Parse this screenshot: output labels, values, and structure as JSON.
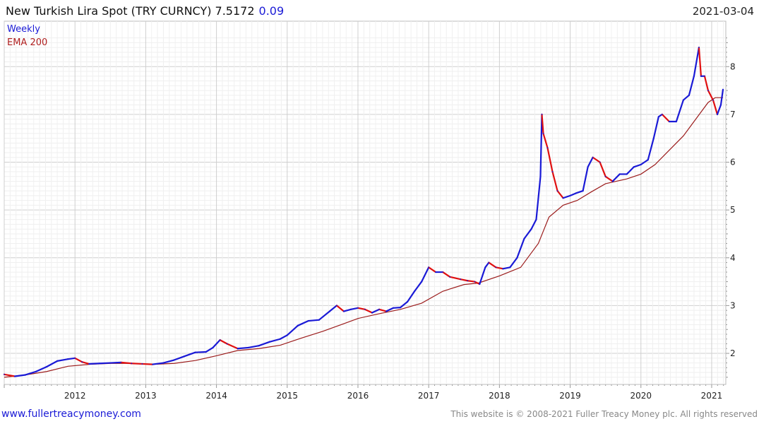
{
  "header": {
    "title": "New Turkish Lira Spot (TRY CURNCY) 7.5172",
    "change": "0.09",
    "date": "2021-03-04"
  },
  "legend": {
    "series1": "Weekly",
    "series2": "EMA 200"
  },
  "footer": {
    "left": "www.fullertreacymoney.com",
    "right": "This website is © 2008-2021 Fuller Treacy Money plc. All rights reserved"
  },
  "colors": {
    "up": "#1a1ad6",
    "down": "#e01010",
    "ema": "#9b1c1c",
    "grid": "#d8d8d8"
  },
  "chart_data": {
    "type": "line",
    "xlim": [
      2011.0,
      2021.2
    ],
    "ylim": [
      1.35,
      8.95
    ],
    "x_ticks": [
      "2012",
      "2013",
      "2014",
      "2015",
      "2016",
      "2017",
      "2018",
      "2019",
      "2020",
      "2021"
    ],
    "y_ticks": [
      "2",
      "3",
      "4",
      "5",
      "6",
      "7",
      "8"
    ],
    "series": [
      {
        "name": "Weekly",
        "points": [
          [
            2011.0,
            1.56
          ],
          [
            2011.15,
            1.52
          ],
          [
            2011.3,
            1.55
          ],
          [
            2011.45,
            1.62
          ],
          [
            2011.6,
            1.72
          ],
          [
            2011.75,
            1.84
          ],
          [
            2011.9,
            1.88
          ],
          [
            2012.0,
            1.9
          ],
          [
            2012.1,
            1.82
          ],
          [
            2012.2,
            1.78
          ],
          [
            2012.35,
            1.79
          ],
          [
            2012.5,
            1.8
          ],
          [
            2012.65,
            1.81
          ],
          [
            2012.8,
            1.79
          ],
          [
            2012.95,
            1.78
          ],
          [
            2013.1,
            1.77
          ],
          [
            2013.25,
            1.8
          ],
          [
            2013.4,
            1.86
          ],
          [
            2013.55,
            1.94
          ],
          [
            2013.7,
            2.02
          ],
          [
            2013.85,
            2.03
          ],
          [
            2013.95,
            2.12
          ],
          [
            2014.05,
            2.28
          ],
          [
            2014.15,
            2.2
          ],
          [
            2014.3,
            2.1
          ],
          [
            2014.45,
            2.12
          ],
          [
            2014.6,
            2.16
          ],
          [
            2014.75,
            2.24
          ],
          [
            2014.9,
            2.3
          ],
          [
            2015.0,
            2.38
          ],
          [
            2015.15,
            2.58
          ],
          [
            2015.3,
            2.68
          ],
          [
            2015.45,
            2.7
          ],
          [
            2015.6,
            2.88
          ],
          [
            2015.7,
            3.0
          ],
          [
            2015.8,
            2.88
          ],
          [
            2015.9,
            2.92
          ],
          [
            2016.0,
            2.95
          ],
          [
            2016.1,
            2.92
          ],
          [
            2016.2,
            2.85
          ],
          [
            2016.3,
            2.92
          ],
          [
            2016.4,
            2.88
          ],
          [
            2016.5,
            2.95
          ],
          [
            2016.6,
            2.96
          ],
          [
            2016.7,
            3.08
          ],
          [
            2016.8,
            3.3
          ],
          [
            2016.9,
            3.5
          ],
          [
            2017.0,
            3.8
          ],
          [
            2017.1,
            3.7
          ],
          [
            2017.2,
            3.7
          ],
          [
            2017.3,
            3.6
          ],
          [
            2017.45,
            3.55
          ],
          [
            2017.55,
            3.52
          ],
          [
            2017.65,
            3.5
          ],
          [
            2017.72,
            3.45
          ],
          [
            2017.8,
            3.8
          ],
          [
            2017.85,
            3.9
          ],
          [
            2017.95,
            3.8
          ],
          [
            2018.05,
            3.77
          ],
          [
            2018.15,
            3.8
          ],
          [
            2018.25,
            4.0
          ],
          [
            2018.35,
            4.4
          ],
          [
            2018.45,
            4.6
          ],
          [
            2018.52,
            4.8
          ],
          [
            2018.58,
            5.7
          ],
          [
            2018.6,
            7.0
          ],
          [
            2018.62,
            6.6
          ],
          [
            2018.68,
            6.3
          ],
          [
            2018.75,
            5.8
          ],
          [
            2018.82,
            5.4
          ],
          [
            2018.9,
            5.25
          ],
          [
            2019.0,
            5.3
          ],
          [
            2019.08,
            5.35
          ],
          [
            2019.18,
            5.4
          ],
          [
            2019.25,
            5.9
          ],
          [
            2019.32,
            6.1
          ],
          [
            2019.42,
            6.0
          ],
          [
            2019.5,
            5.7
          ],
          [
            2019.6,
            5.6
          ],
          [
            2019.7,
            5.75
          ],
          [
            2019.8,
            5.75
          ],
          [
            2019.9,
            5.9
          ],
          [
            2020.0,
            5.95
          ],
          [
            2020.1,
            6.05
          ],
          [
            2020.18,
            6.5
          ],
          [
            2020.25,
            6.95
          ],
          [
            2020.3,
            7.0
          ],
          [
            2020.4,
            6.85
          ],
          [
            2020.5,
            6.85
          ],
          [
            2020.6,
            7.3
          ],
          [
            2020.68,
            7.4
          ],
          [
            2020.75,
            7.8
          ],
          [
            2020.82,
            8.4
          ],
          [
            2020.85,
            7.8
          ],
          [
            2020.9,
            7.8
          ],
          [
            2020.95,
            7.5
          ],
          [
            2021.02,
            7.3
          ],
          [
            2021.08,
            7.0
          ],
          [
            2021.13,
            7.2
          ],
          [
            2021.16,
            7.52
          ]
        ]
      },
      {
        "name": "EMA 200",
        "points": [
          [
            2011.0,
            1.5
          ],
          [
            2011.3,
            1.55
          ],
          [
            2011.6,
            1.62
          ],
          [
            2011.9,
            1.73
          ],
          [
            2012.2,
            1.77
          ],
          [
            2012.5,
            1.79
          ],
          [
            2012.8,
            1.79
          ],
          [
            2013.1,
            1.77
          ],
          [
            2013.4,
            1.79
          ],
          [
            2013.7,
            1.85
          ],
          [
            2014.0,
            1.95
          ],
          [
            2014.3,
            2.06
          ],
          [
            2014.6,
            2.1
          ],
          [
            2014.9,
            2.17
          ],
          [
            2015.2,
            2.32
          ],
          [
            2015.5,
            2.46
          ],
          [
            2015.8,
            2.62
          ],
          [
            2016.0,
            2.73
          ],
          [
            2016.3,
            2.83
          ],
          [
            2016.6,
            2.92
          ],
          [
            2016.9,
            3.05
          ],
          [
            2017.2,
            3.3
          ],
          [
            2017.5,
            3.44
          ],
          [
            2017.7,
            3.47
          ],
          [
            2018.0,
            3.62
          ],
          [
            2018.3,
            3.8
          ],
          [
            2018.55,
            4.3
          ],
          [
            2018.7,
            4.85
          ],
          [
            2018.9,
            5.1
          ],
          [
            2019.1,
            5.2
          ],
          [
            2019.3,
            5.38
          ],
          [
            2019.5,
            5.55
          ],
          [
            2019.8,
            5.65
          ],
          [
            2020.0,
            5.75
          ],
          [
            2020.2,
            5.95
          ],
          [
            2020.4,
            6.25
          ],
          [
            2020.6,
            6.55
          ],
          [
            2020.8,
            6.95
          ],
          [
            2020.95,
            7.25
          ],
          [
            2021.05,
            7.35
          ],
          [
            2021.16,
            7.35
          ]
        ]
      }
    ]
  }
}
